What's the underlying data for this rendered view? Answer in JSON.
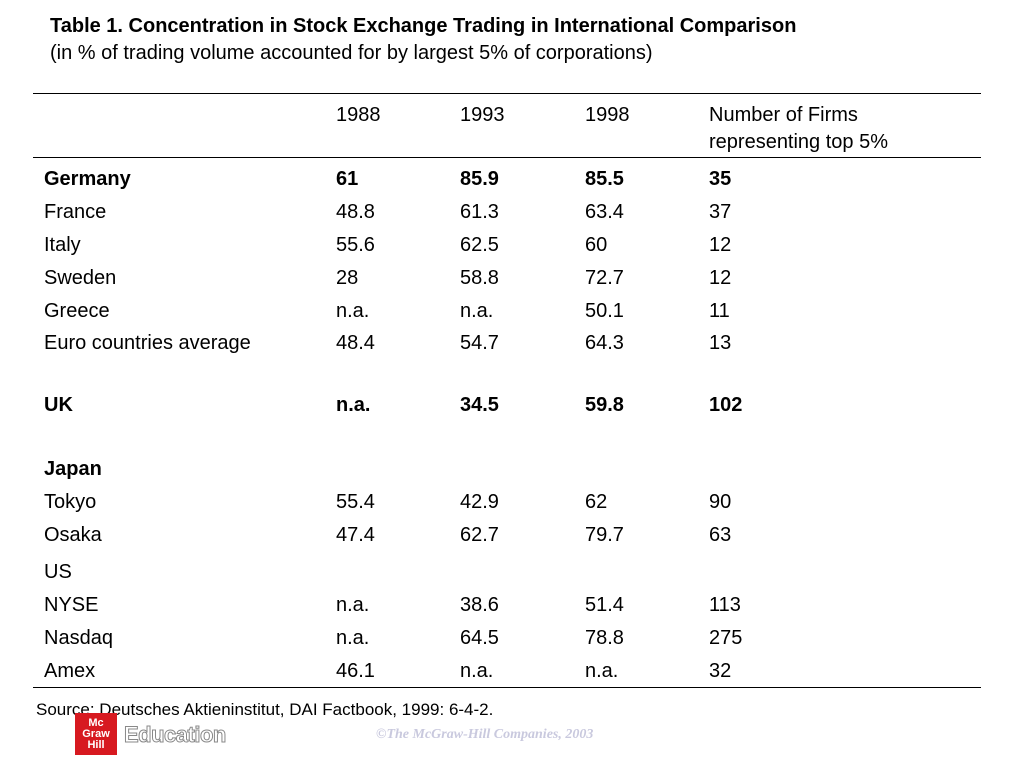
{
  "title": "Table 1. Concentration in Stock Exchange Trading in International Comparison",
  "subtitle": "(in % of trading volume accounted for by largest 5% of corporations)",
  "headers": {
    "col1988": "1988",
    "col1993": "1993",
    "col1998": "1998",
    "firms_line1": "Number of Firms",
    "firms_line2": "representing top 5%"
  },
  "rows": [
    {
      "name": "Germany",
      "v1988": "61",
      "v1993": "85.9",
      "v1998": "85.5",
      "firms": "35",
      "bold": true
    },
    {
      "name": "France",
      "v1988": "48.8",
      "v1993": "61.3",
      "v1998": "63.4",
      "firms": "37"
    },
    {
      "name": "Italy",
      "v1988": "55.6",
      "v1993": "62.5",
      "v1998": "60",
      "firms": "12"
    },
    {
      "name": "Sweden",
      "v1988": "28",
      "v1993": "58.8",
      "v1998": "72.7",
      "firms": "12"
    },
    {
      "name": "Greece",
      "v1988": "n.a.",
      "v1993": "n.a.",
      "v1998": "50.1",
      "firms": "11"
    },
    {
      "name": "Euro countries average",
      "v1988": "48.4",
      "v1993": "54.7",
      "v1998": "64.3",
      "firms": "13"
    },
    {
      "name": "UK",
      "v1988": "n.a.",
      "v1993": "34.5",
      "v1998": "59.8",
      "firms": "102",
      "bold": true
    },
    {
      "name": "Japan",
      "v1988": "",
      "v1993": "",
      "v1998": "",
      "firms": "",
      "bold": true
    },
    {
      "name": "Tokyo",
      "v1988": "55.4",
      "v1993": "42.9",
      "v1998": "62",
      "firms": "90"
    },
    {
      "name": "Osaka",
      "v1988": "47.4",
      "v1993": "62.7",
      "v1998": "79.7",
      "firms": "63"
    },
    {
      "name": "US",
      "v1988": "",
      "v1993": "",
      "v1998": "",
      "firms": ""
    },
    {
      "name": "NYSE",
      "v1988": "n.a.",
      "v1993": "38.6",
      "v1998": "51.4",
      "firms": "113"
    },
    {
      "name": "Nasdaq",
      "v1988": "n.a.",
      "v1993": "64.5",
      "v1998": "78.8",
      "firms": "275"
    },
    {
      "name": "Amex",
      "v1988": "46.1",
      "v1993": "n.a.",
      "v1998": "n.a.",
      "firms": "32"
    }
  ],
  "source": "Source: Deutsches Aktieninstitut, DAI Factbook, 1999: 6-4-2.",
  "logo": {
    "line1": "Mc",
    "line2": "Graw",
    "line3": "Hill",
    "brand": "Education",
    "color": "#d71920"
  },
  "copyright": "©The McGraw-Hill Companies, 2003"
}
